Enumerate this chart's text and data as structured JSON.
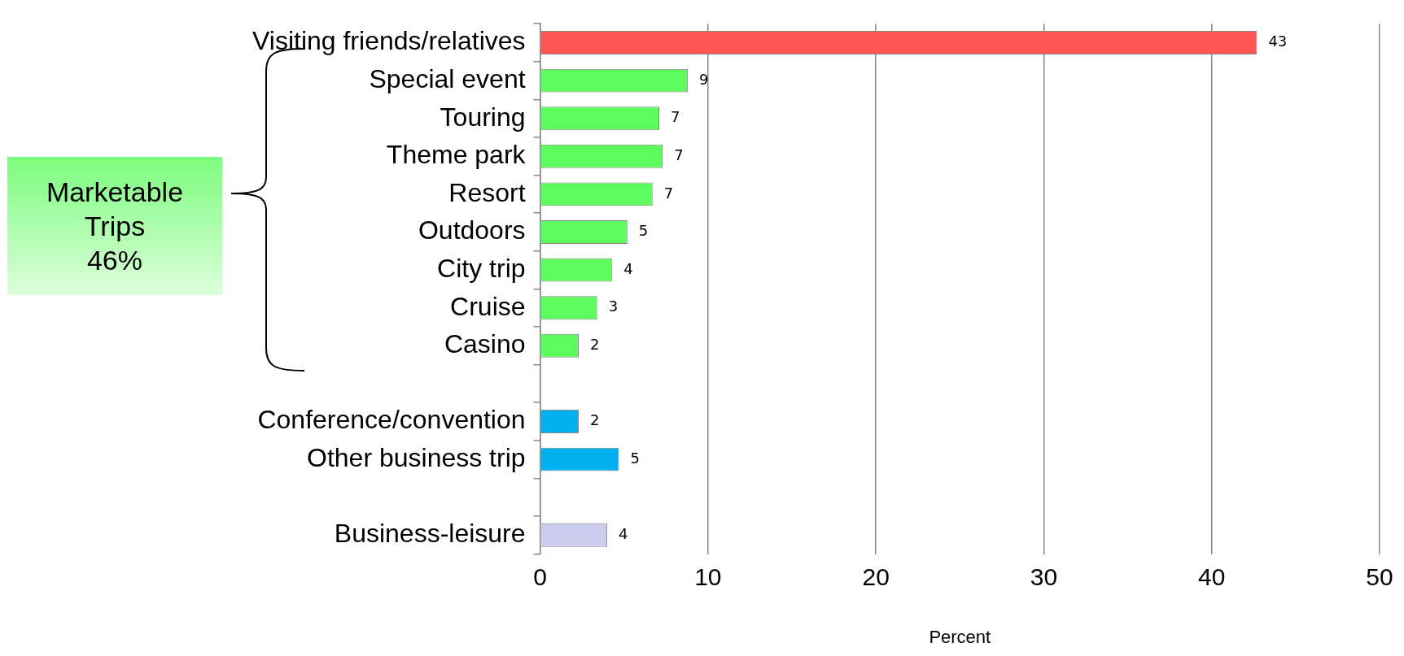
{
  "chart_data": {
    "type": "bar",
    "orientation": "horizontal",
    "categories": [
      "Visiting friends/relatives",
      "Special event",
      "Touring",
      "Theme park",
      "Resort",
      "Outdoors",
      "City trip",
      "Cruise",
      "Casino",
      null,
      "Conference/convention",
      "Other business trip",
      null,
      "Business-leisure"
    ],
    "values": [
      42.7,
      8.8,
      7.1,
      7.3,
      6.7,
      5.2,
      4.3,
      3.4,
      2.3,
      null,
      2.3,
      4.7,
      null,
      4.0
    ],
    "value_labels": [
      "43",
      "9",
      "7",
      "7",
      "7",
      "5",
      "4",
      "3",
      "2",
      null,
      "2",
      "5",
      null,
      "4"
    ],
    "colors": [
      "#ff5555",
      "#5dfc5d",
      "#5dfc5d",
      "#5dfc5d",
      "#5dfc5d",
      "#5dfc5d",
      "#5dfc5d",
      "#5dfc5d",
      "#5dfc5d",
      "#5dfc5d",
      "#00b0f0",
      "#00b0f0",
      "#ccccee",
      "#ccccee"
    ],
    "xlim": [
      0,
      50
    ],
    "xticks": [
      0,
      10,
      20,
      30,
      40,
      50
    ],
    "xlabel": "Percent",
    "grid": "x",
    "annotations": [
      "Marketable\nTrips\n46%"
    ]
  }
}
